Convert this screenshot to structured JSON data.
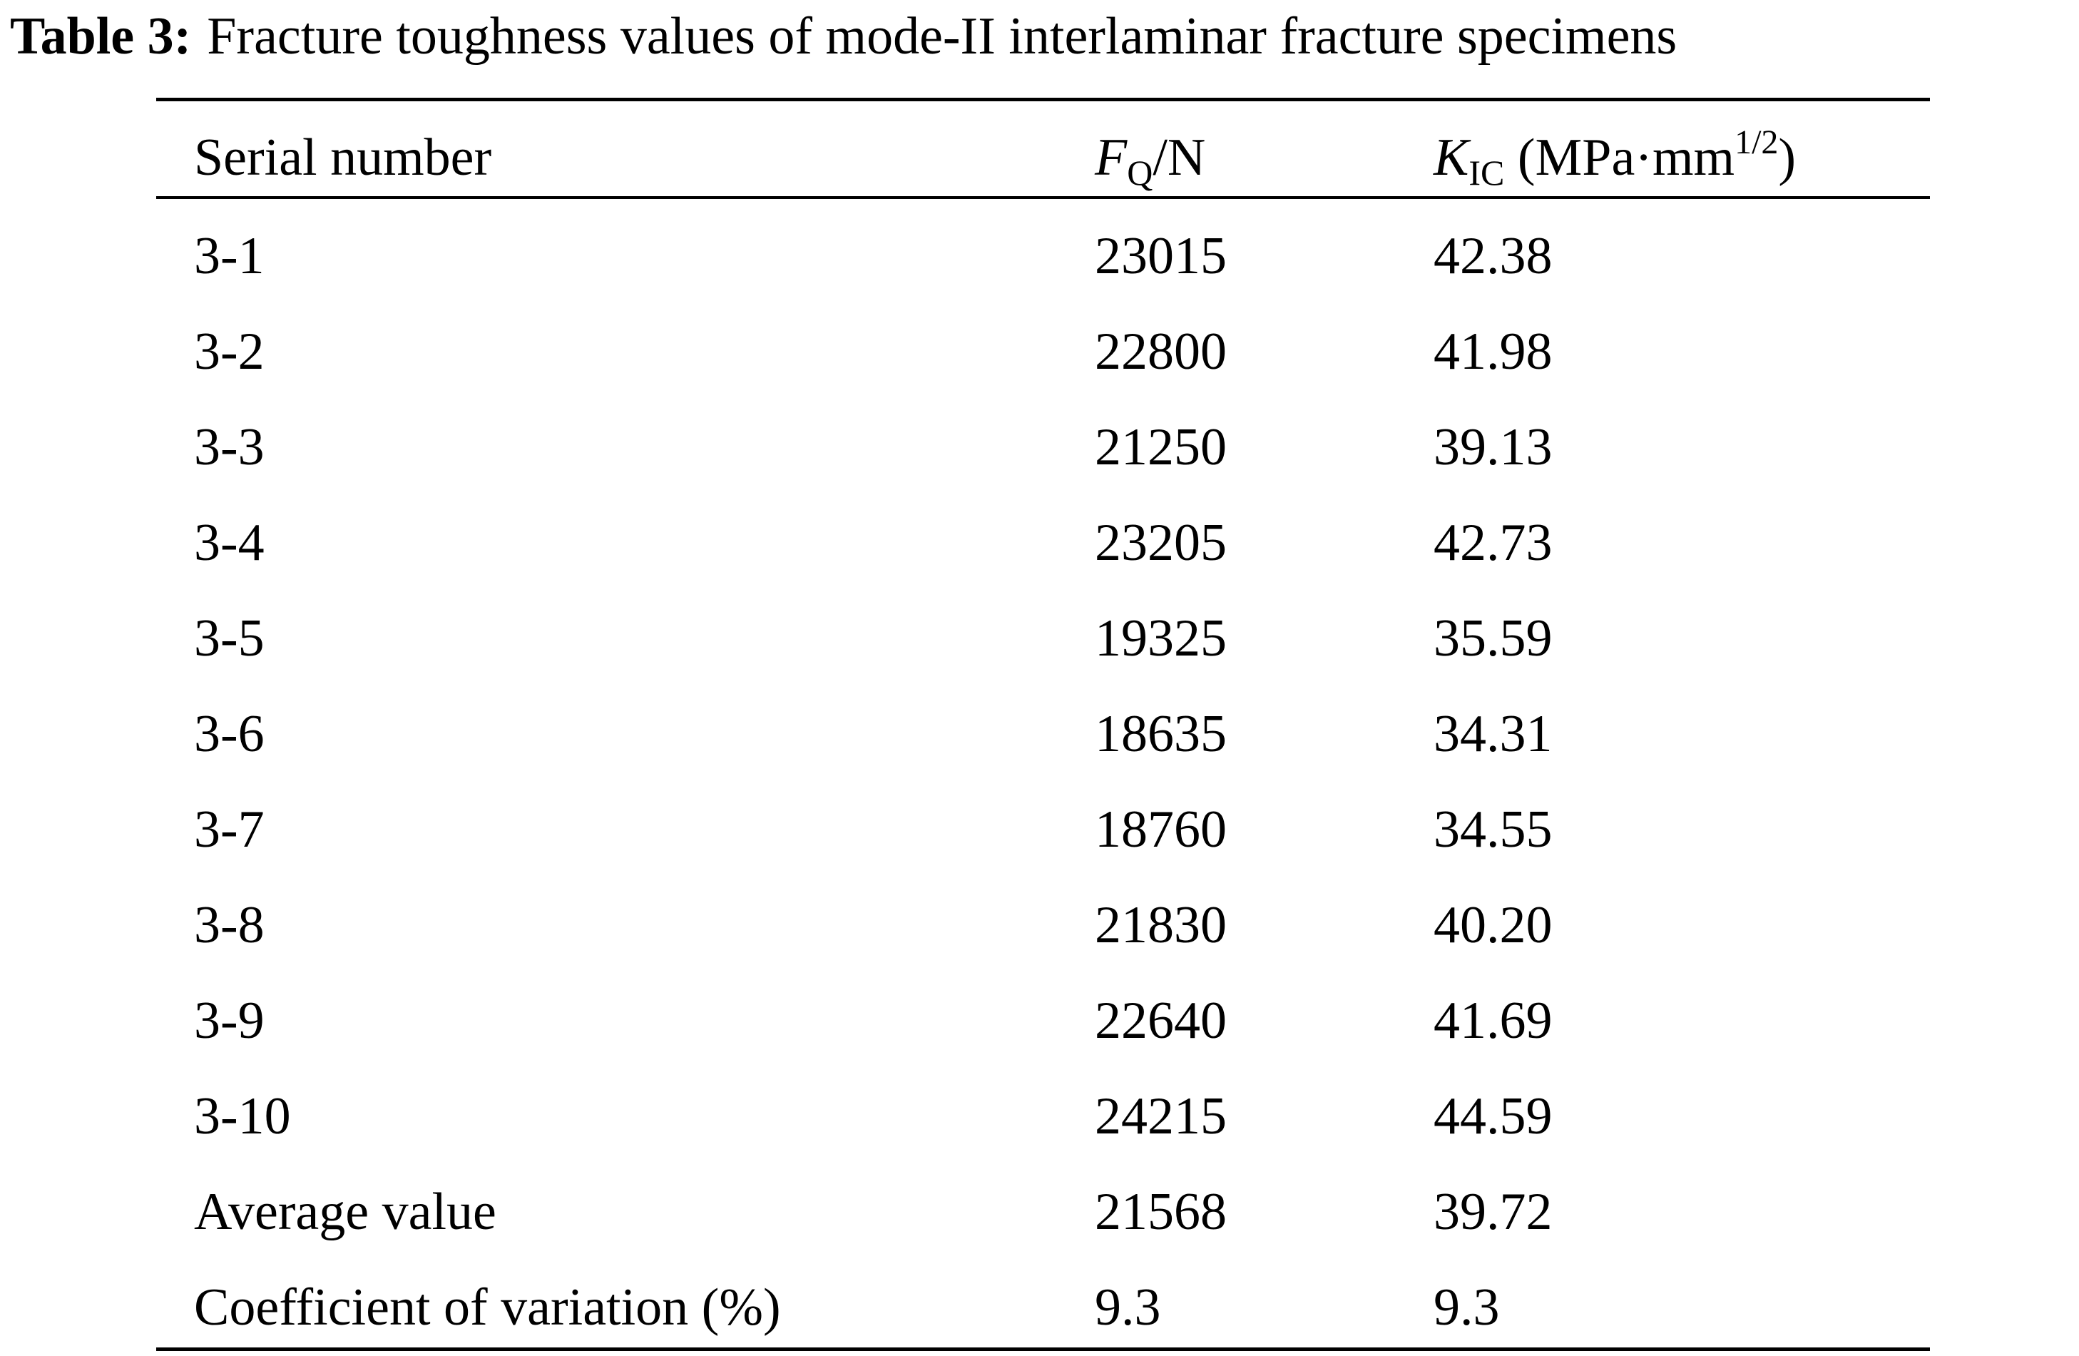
{
  "caption": {
    "label": "Table 3:",
    "title": "Fracture toughness values of mode-II interlaminar fracture specimens"
  },
  "table": {
    "header": {
      "col1": "Serial number",
      "col2": {
        "symbol": "F",
        "subscript": "Q",
        "unit": "/N"
      },
      "col3": {
        "symbol": "K",
        "subscript": "IC",
        "unit_prefix": " (MPa·mm",
        "superscript": "1/2",
        "unit_suffix": ")"
      }
    },
    "rows": [
      [
        "3-1",
        "23015",
        "42.38"
      ],
      [
        "3-2",
        "22800",
        "41.98"
      ],
      [
        "3-3",
        "21250",
        "39.13"
      ],
      [
        "3-4",
        "23205",
        "42.73"
      ],
      [
        "3-5",
        "19325",
        "35.59"
      ],
      [
        "3-6",
        "18635",
        "34.31"
      ],
      [
        "3-7",
        "18760",
        "34.55"
      ],
      [
        "3-8",
        "21830",
        "40.20"
      ],
      [
        "3-9",
        "22640",
        "41.69"
      ],
      [
        "3-10",
        "24215",
        "44.59"
      ],
      [
        "Average value",
        "21568",
        "39.72"
      ],
      [
        "Coefficient of variation (%)",
        "9.3",
        "9.3"
      ]
    ]
  }
}
